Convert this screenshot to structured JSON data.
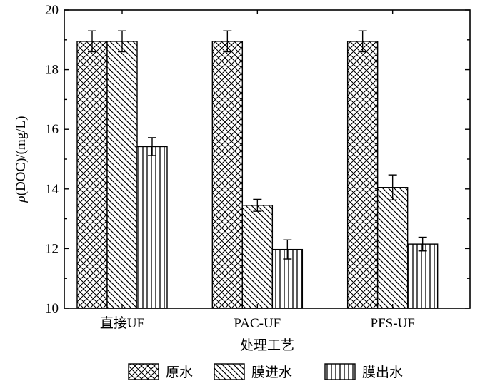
{
  "chart_data": {
    "type": "bar",
    "categories": [
      "直接UF",
      "PAC-UF",
      "PFS-UF"
    ],
    "series": [
      {
        "name": "原水",
        "values": [
          18.95,
          18.95,
          18.95
        ],
        "errors": [
          0.35,
          0.35,
          0.35
        ],
        "pattern": "crosshatch"
      },
      {
        "name": "膜进水",
        "values": [
          18.95,
          13.45,
          14.05
        ],
        "errors": [
          0.35,
          0.2,
          0.42
        ],
        "pattern": "diagonal"
      },
      {
        "name": "膜出水",
        "values": [
          15.42,
          11.97,
          12.15
        ],
        "errors": [
          0.3,
          0.32,
          0.23
        ],
        "pattern": "vertical"
      }
    ],
    "xlabel": "处理工艺",
    "ylabel_rho": "ρ",
    "ylabel_rest": "(DOC)/(mg/L)",
    "ylim": [
      10,
      20
    ],
    "yticks": [
      10,
      12,
      14,
      16,
      18,
      20
    ],
    "grid": false,
    "legend_position": "bottom"
  }
}
